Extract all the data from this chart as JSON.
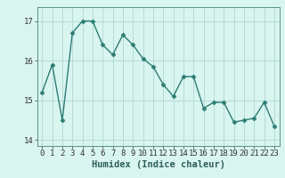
{
  "x": [
    0,
    1,
    2,
    3,
    4,
    5,
    6,
    7,
    8,
    9,
    10,
    11,
    12,
    13,
    14,
    15,
    16,
    17,
    18,
    19,
    20,
    21,
    22,
    23
  ],
  "y": [
    15.2,
    15.9,
    14.5,
    16.7,
    17.0,
    17.0,
    16.4,
    16.15,
    16.65,
    16.4,
    16.05,
    15.85,
    15.4,
    15.1,
    15.6,
    15.6,
    14.8,
    14.95,
    14.95,
    14.45,
    14.5,
    14.55,
    14.95,
    14.35
  ],
  "line_color": "#2d7d74",
  "marker": "D",
  "markersize": 2.5,
  "linewidth": 1.0,
  "bg_color": "#d9f5f0",
  "grid_color": "#b0d8d0",
  "xlabel": "Humidex (Indice chaleur)",
  "ylabel": "",
  "title": "",
  "xlim": [
    -0.5,
    23.5
  ],
  "ylim": [
    13.85,
    17.35
  ],
  "yticks": [
    14,
    15,
    16,
    17
  ],
  "xticks": [
    0,
    1,
    2,
    3,
    4,
    5,
    6,
    7,
    8,
    9,
    10,
    11,
    12,
    13,
    14,
    15,
    16,
    17,
    18,
    19,
    20,
    21,
    22,
    23
  ],
  "tick_fontsize": 6.5,
  "xlabel_fontsize": 7.5
}
